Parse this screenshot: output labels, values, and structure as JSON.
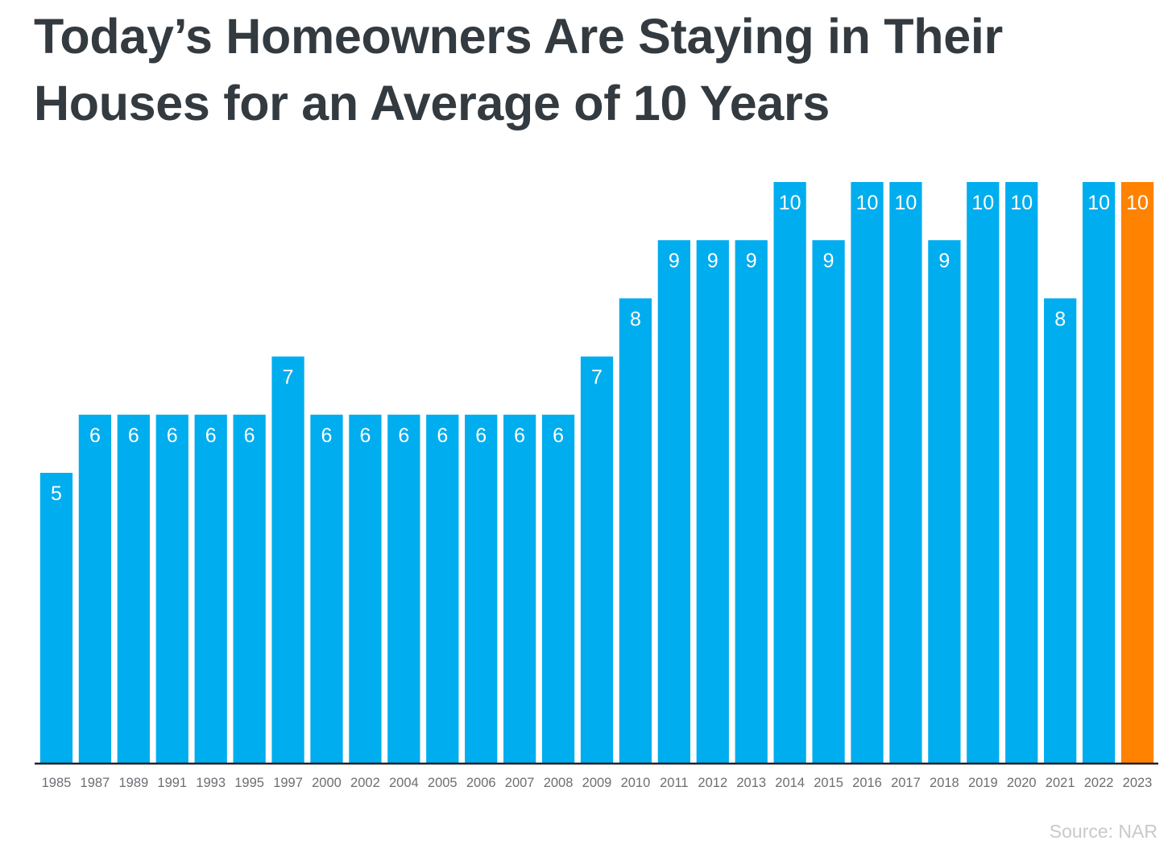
{
  "title": "Today’s Homeowners Are Staying in Their Houses for an Average of 10 Years",
  "source": "Source: NAR",
  "colors": {
    "bar": "#00adee",
    "highlight": "#ff8200",
    "axis": "#222222",
    "title": "#333a40"
  },
  "chart_data": {
    "type": "bar",
    "title": "Today’s Homeowners Are Staying in Their Houses for an Average of 10 Years",
    "categories": [
      "1985",
      "1987",
      "1989",
      "1991",
      "1993",
      "1995",
      "1997",
      "2000",
      "2002",
      "2004",
      "2005",
      "2006",
      "2007",
      "2008",
      "2009",
      "2010",
      "2011",
      "2012",
      "2013",
      "2014",
      "2015",
      "2016",
      "2017",
      "2018",
      "2019",
      "2020",
      "2021",
      "2022",
      "2023"
    ],
    "values": [
      5,
      6,
      6,
      6,
      6,
      6,
      7,
      6,
      6,
      6,
      6,
      6,
      6,
      6,
      7,
      8,
      9,
      9,
      9,
      10,
      9,
      10,
      10,
      9,
      10,
      10,
      8,
      10,
      10
    ],
    "highlighted_category": "2023",
    "data_labels": true,
    "ylim": [
      0,
      10
    ],
    "grid": false,
    "xlabel": "",
    "ylabel": ""
  }
}
